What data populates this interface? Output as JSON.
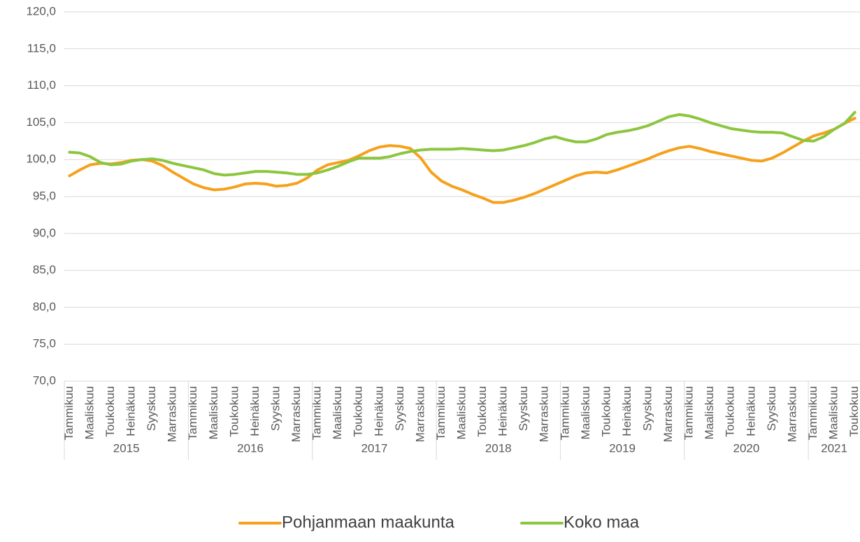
{
  "chart_data": {
    "type": "line",
    "categories": [
      "Tammikuu",
      null,
      "Maaliskuu",
      null,
      "Toukokuu",
      null,
      "Heinäkuu",
      null,
      "Syyskuu",
      null,
      "Marraskuu",
      null,
      "Tammikuu",
      null,
      "Maaliskuu",
      null,
      "Toukokuu",
      null,
      "Heinäkuu",
      null,
      "Syyskuu",
      null,
      "Marraskuu",
      null,
      "Tammikuu",
      null,
      "Maaliskuu",
      null,
      "Toukokuu",
      null,
      "Heinäkuu",
      null,
      "Syyskuu",
      null,
      "Marraskuu",
      null,
      "Tammikuu",
      null,
      "Maaliskuu",
      null,
      "Toukokuu",
      null,
      "Heinäkuu",
      null,
      "Syyskuu",
      null,
      "Marraskuu",
      null,
      "Tammikuu",
      null,
      "Maaliskuu",
      null,
      "Toukokuu",
      null,
      "Heinäkuu",
      null,
      "Syyskuu",
      null,
      "Marraskuu",
      null,
      "Tammikuu",
      null,
      "Maaliskuu",
      null,
      "Toukokuu",
      null,
      "Heinäkuu",
      null,
      "Syyskuu",
      null,
      "Marraskuu",
      null,
      "Tammikuu",
      null,
      "Maaliskuu",
      null,
      "Toukokuu"
    ],
    "year_groups": [
      "2015",
      "2016",
      "2017",
      "2018",
      "2019",
      "2020",
      "2021"
    ],
    "series": [
      {
        "name": "Pohjanmaan maakunta",
        "color": "#f5a11c",
        "values": [
          97.8,
          98.6,
          99.3,
          99.5,
          99.4,
          99.6,
          99.9,
          100.0,
          99.8,
          99.2,
          98.3,
          97.5,
          96.7,
          96.2,
          95.9,
          96.0,
          96.3,
          96.7,
          96.8,
          96.7,
          96.4,
          96.5,
          96.8,
          97.5,
          98.6,
          99.3,
          99.6,
          99.9,
          100.5,
          101.2,
          101.7,
          101.9,
          101.8,
          101.5,
          100.2,
          98.3,
          97.1,
          96.4,
          95.9,
          95.3,
          94.8,
          94.2,
          94.2,
          94.5,
          94.9,
          95.4,
          96.0,
          96.6,
          97.2,
          97.8,
          98.2,
          98.3,
          98.2,
          98.6,
          99.1,
          99.6,
          100.1,
          100.7,
          101.2,
          101.6,
          101.8,
          101.5,
          101.1,
          100.8,
          100.5,
          100.2,
          99.9,
          99.8,
          100.2,
          100.9,
          101.7,
          102.5,
          103.2,
          103.6,
          104.1,
          104.9,
          105.6
        ]
      },
      {
        "name": "Koko maa",
        "color": "#8cc63f",
        "values": [
          101.0,
          100.9,
          100.4,
          99.6,
          99.3,
          99.4,
          99.8,
          100.0,
          100.1,
          99.9,
          99.5,
          99.2,
          98.9,
          98.6,
          98.1,
          97.9,
          98.0,
          98.2,
          98.4,
          98.4,
          98.3,
          98.2,
          98.0,
          98.0,
          98.2,
          98.6,
          99.1,
          99.7,
          100.2,
          100.2,
          100.2,
          100.4,
          100.8,
          101.1,
          101.3,
          101.4,
          101.4,
          101.4,
          101.5,
          101.4,
          101.3,
          101.2,
          101.3,
          101.6,
          101.9,
          102.3,
          102.8,
          103.1,
          102.7,
          102.4,
          102.4,
          102.8,
          103.4,
          103.7,
          103.9,
          104.2,
          104.6,
          105.2,
          105.8,
          106.1,
          105.9,
          105.5,
          105.0,
          104.6,
          104.2,
          104.0,
          103.8,
          103.7,
          103.7,
          103.6,
          103.1,
          102.6,
          102.5,
          103.1,
          104.1,
          104.9,
          106.4
        ]
      }
    ],
    "ylim": [
      70,
      120
    ],
    "yticks": [
      {
        "value": 70,
        "label": "70,0"
      },
      {
        "value": 75,
        "label": "75,0"
      },
      {
        "value": 80,
        "label": "80,0"
      },
      {
        "value": 85,
        "label": "85,0"
      },
      {
        "value": 90,
        "label": "90,0"
      },
      {
        "value": 95,
        "label": "95,0"
      },
      {
        "value": 100,
        "label": "100,0"
      },
      {
        "value": 105,
        "label": "105,0"
      },
      {
        "value": 110,
        "label": "110,0"
      },
      {
        "value": 115,
        "label": "115,0"
      },
      {
        "value": 120,
        "label": "120,0"
      }
    ],
    "grid": true,
    "legend": "bottom"
  }
}
